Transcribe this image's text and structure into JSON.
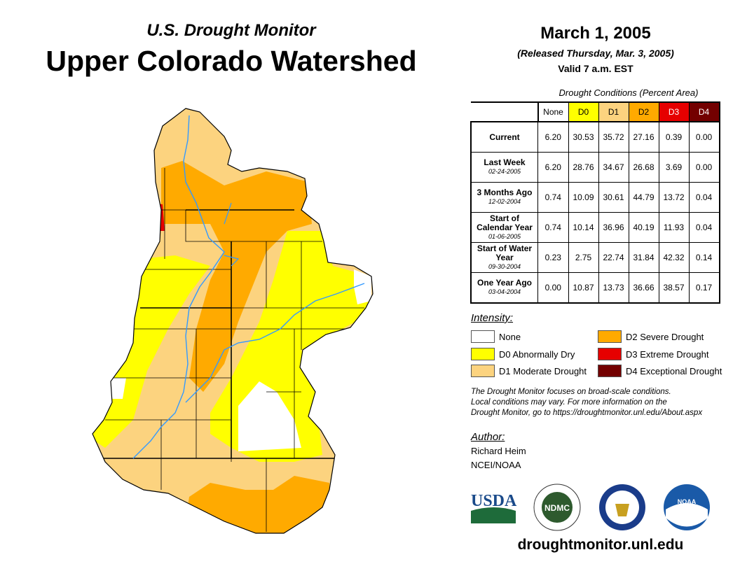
{
  "header": {
    "subtitle": "U.S. Drought Monitor",
    "title": "Upper Colorado Watershed",
    "date": "March 1, 2005",
    "released": "(Released Thursday, Mar. 3, 2005)",
    "valid": "Valid 7 a.m. EST"
  },
  "table": {
    "caption": "Drought Conditions (Percent Area)",
    "columns": [
      {
        "label": "None",
        "color": "#ffffff"
      },
      {
        "label": "D0",
        "color": "#ffff00"
      },
      {
        "label": "D1",
        "color": "#fcd37f"
      },
      {
        "label": "D2",
        "color": "#ffaa00"
      },
      {
        "label": "D3",
        "color": "#e60000"
      },
      {
        "label": "D4",
        "color": "#730000"
      }
    ],
    "rows": [
      {
        "label": "Current",
        "date": "",
        "values": [
          "6.20",
          "30.53",
          "35.72",
          "27.16",
          "0.39",
          "0.00"
        ]
      },
      {
        "label": "Last Week",
        "date": "02-24-2005",
        "values": [
          "6.20",
          "28.76",
          "34.67",
          "26.68",
          "3.69",
          "0.00"
        ]
      },
      {
        "label": "3 Months Ago",
        "date": "12-02-2004",
        "values": [
          "0.74",
          "10.09",
          "30.61",
          "44.79",
          "13.72",
          "0.04"
        ]
      },
      {
        "label": "Start of Calendar Year",
        "date": "01-06-2005",
        "values": [
          "0.74",
          "10.14",
          "36.96",
          "40.19",
          "11.93",
          "0.04"
        ]
      },
      {
        "label": "Start of Water Year",
        "date": "09-30-2004",
        "values": [
          "0.23",
          "2.75",
          "22.74",
          "31.84",
          "42.32",
          "0.14"
        ]
      },
      {
        "label": "One Year Ago",
        "date": "03-04-2004",
        "values": [
          "0.00",
          "10.87",
          "13.73",
          "36.66",
          "38.57",
          "0.17"
        ]
      }
    ]
  },
  "legend": {
    "title": "Intensity:",
    "items": [
      {
        "label": "None",
        "color": "#ffffff"
      },
      {
        "label": "D0 Abnormally Dry",
        "color": "#ffff00"
      },
      {
        "label": "D1 Moderate Drought",
        "color": "#fcd37f"
      },
      {
        "label": "D2 Severe Drought",
        "color": "#ffaa00"
      },
      {
        "label": "D3 Extreme Drought",
        "color": "#e60000"
      },
      {
        "label": "D4 Exceptional Drought",
        "color": "#730000"
      }
    ]
  },
  "note": [
    "The Drought Monitor focuses on broad-scale conditions.",
    "Local conditions may vary. For more information on the",
    "Drought Monitor, go to https://droughtmonitor.unl.edu/About.aspx"
  ],
  "author": {
    "label": "Author:",
    "name": "Richard Heim",
    "org": "NCEI/NOAA"
  },
  "logos": {
    "usda": "USDA",
    "ndmc": "NDMC",
    "noaa": "NOAA"
  },
  "url": "droughtmonitor.unl.edu"
}
